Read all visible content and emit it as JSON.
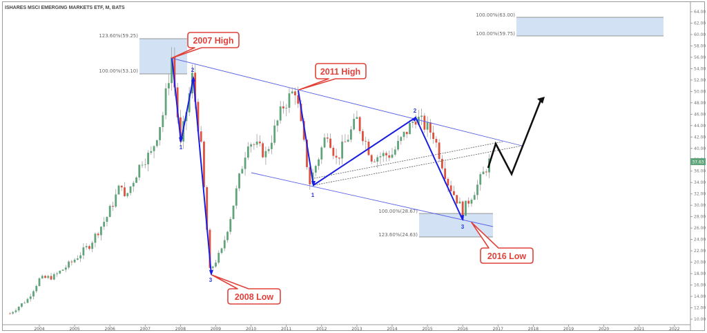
{
  "header": {
    "title": "ISHARES MSCI EMERGING MARKETS ETF, M, BATS"
  },
  "colors": {
    "up_candle": "#5fa47a",
    "down_candle": "#e0503e",
    "wick": "#9e9e9e",
    "wave_line": "#1a1ee0",
    "channel_line": "#5a62e8",
    "fib_box": "#d3e1f4",
    "callout_border": "#e0423a",
    "projection": "#111111",
    "last_price_bg": "#5fa47a"
  },
  "axes": {
    "y_ticks": [
      "64.00",
      "62.00",
      "60.00",
      "58.00",
      "56.00",
      "54.00",
      "52.00",
      "50.00",
      "48.00",
      "46.00",
      "44.00",
      "42.00",
      "40.00",
      "38.00",
      "36.00",
      "34.00",
      "32.00",
      "30.00",
      "28.00",
      "26.00",
      "24.00",
      "22.00",
      "20.00",
      "18.00",
      "16.00",
      "14.00",
      "12.00",
      "10.00"
    ],
    "x_ticks": [
      "2004",
      "2005",
      "2006",
      "2007",
      "2008",
      "2009",
      "2010",
      "2011",
      "2012",
      "2013",
      "2014",
      "2015",
      "2016",
      "2017",
      "2018",
      "2019",
      "2020",
      "2021",
      "2022"
    ],
    "last_price": "37.63"
  },
  "fib_levels": {
    "top_left": {
      "upper": "123.60%(59.25)",
      "lower": "100.00%(53.10)"
    },
    "bottom": {
      "upper": "100.00%(28.67)",
      "lower": "123.60%(24.63)"
    },
    "top_right": {
      "upper": "100.00%(63.00)",
      "lower": "100.00%(59.75)"
    }
  },
  "callouts": {
    "high_2007": "2007 High",
    "low_2008": "2008 Low",
    "high_2011": "2011 High",
    "low_2016": "2016 Low"
  },
  "wave_labels": {
    "w1_a": "1",
    "w2_a": "2",
    "w3_a": "3",
    "w1_b": "1",
    "w2_b": "2",
    "w3_b": "3"
  },
  "chart_data": {
    "type": "candlestick",
    "title": "ISHARES MSCI EMERGING MARKETS ETF, M, BATS",
    "timeframe": "Monthly",
    "exchange": "BATS",
    "xlabel": "",
    "ylabel": "",
    "ylim": [
      10,
      64
    ],
    "xlim": [
      "2003",
      "2022"
    ],
    "grid": false,
    "last_price": 37.63,
    "key_points": [
      {
        "label": "2007 High",
        "date": "2007-10",
        "price": 56.0
      },
      {
        "label": "Wave 1",
        "date": "2008-01",
        "price": 40.5
      },
      {
        "label": "Wave 2",
        "date": "2008-05",
        "price": 52.5
      },
      {
        "label": "2008 Low",
        "date": "2008-11",
        "price": 18.2
      },
      {
        "label": "2011 High",
        "date": "2011-04",
        "price": 50.4
      },
      {
        "label": "Wave 1",
        "date": "2011-10",
        "price": 33.5
      },
      {
        "label": "Wave 2",
        "date": "2014-09",
        "price": 45.8
      },
      {
        "label": "2016 Low",
        "date": "2016-01",
        "price": 27.6
      }
    ],
    "fibonacci_extensions": [
      {
        "label": "123.60%",
        "price": 59.25
      },
      {
        "label": "100.00%",
        "price": 53.1
      },
      {
        "label": "100.00%",
        "price": 28.67
      },
      {
        "label": "123.60%",
        "price": 24.63
      },
      {
        "label": "100.00%",
        "price": 63.0
      },
      {
        "label": "100.00%",
        "price": 59.75
      }
    ],
    "projection_path": [
      {
        "date": "2016-11",
        "price": 37.6
      },
      {
        "date": "2017-01",
        "price": 41.0
      },
      {
        "date": "2017-06",
        "price": 35.8
      },
      {
        "date": "2018-05",
        "price": 49.0
      }
    ],
    "series": [
      {
        "name": "price_approx_monthly_close",
        "x": [
          "2003-03",
          "2003-09",
          "2004-01",
          "2004-06",
          "2004-12",
          "2005-06",
          "2005-12",
          "2006-05",
          "2006-06",
          "2006-12",
          "2007-03",
          "2007-07",
          "2007-10",
          "2008-01",
          "2008-05",
          "2008-08",
          "2008-11",
          "2009-03",
          "2009-06",
          "2009-12",
          "2010-06",
          "2010-12",
          "2011-04",
          "2011-09",
          "2012-03",
          "2012-06",
          "2013-01",
          "2013-06",
          "2014-01",
          "2014-09",
          "2015-03",
          "2015-08",
          "2016-01",
          "2016-06",
          "2016-10"
        ],
        "values": [
          11.0,
          13.5,
          17.0,
          17.5,
          20.0,
          23.0,
          28.0,
          34.0,
          31.0,
          38.0,
          39.0,
          46.0,
          56.0,
          40.5,
          52.5,
          40.0,
          18.5,
          22.0,
          28.0,
          41.5,
          39.0,
          47.5,
          50.4,
          34.0,
          43.0,
          38.0,
          45.0,
          38.5,
          39.0,
          45.5,
          42.5,
          34.0,
          29.0,
          33.5,
          37.63
        ]
      }
    ]
  }
}
